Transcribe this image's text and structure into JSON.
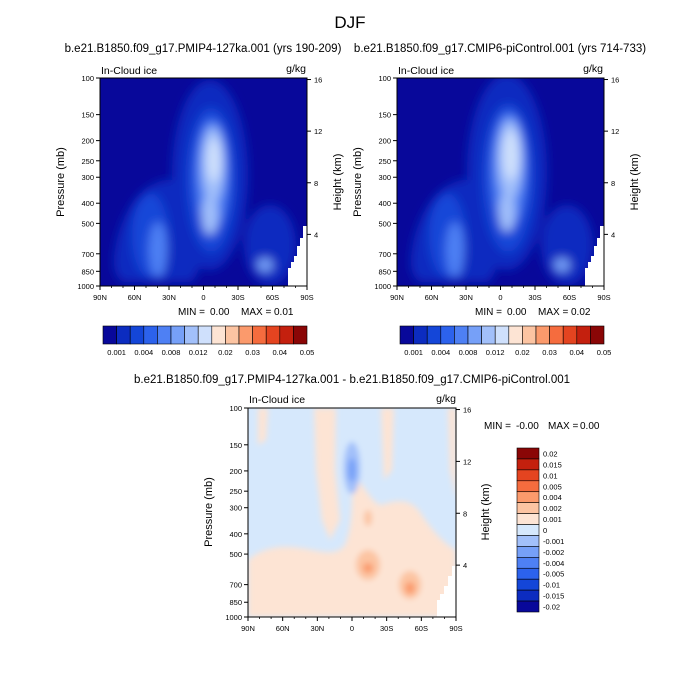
{
  "season_title": "DJF",
  "chart_data": [
    {
      "type": "heatmap",
      "title": "b.e21.B1850.f09_g17.PMIP4-127ka.001 (yrs 190-209)",
      "left_subtitle": "In-Cloud ice",
      "units": "g/kg",
      "xlabel": "",
      "ylabel": "Pressure (mb)",
      "ylabel_right": "Height (km)",
      "x_ticks": [
        "90N",
        "60N",
        "30N",
        "0",
        "30S",
        "60S",
        "90S"
      ],
      "y_ticks": [
        "100",
        "150",
        "200",
        "250",
        "300",
        "400",
        "500",
        "700",
        "850",
        "1000"
      ],
      "height_ticks": [
        "16",
        "12",
        "8",
        "4"
      ],
      "min_label": "MIN =",
      "min_value": "0.00",
      "max_label": "MAX =",
      "max_value": "0.01",
      "colorbar_labels": [
        "0.001",
        "0.004",
        "0.008",
        "0.012",
        "0.02",
        "0.03",
        "0.04",
        "0.05"
      ]
    },
    {
      "type": "heatmap",
      "title": "b.e21.B1850.f09_g17.CMIP6-piControl.001 (yrs 714-733)",
      "left_subtitle": "In-Cloud ice",
      "units": "g/kg",
      "xlabel": "",
      "ylabel": "Pressure (mb)",
      "ylabel_right": "Height (km)",
      "x_ticks": [
        "90N",
        "60N",
        "30N",
        "0",
        "30S",
        "60S",
        "90S"
      ],
      "y_ticks": [
        "100",
        "150",
        "200",
        "250",
        "300",
        "400",
        "500",
        "700",
        "850",
        "1000"
      ],
      "height_ticks": [
        "16",
        "12",
        "8",
        "4"
      ],
      "min_label": "MIN =",
      "min_value": "0.00",
      "max_label": "MAX =",
      "max_value": "0.02",
      "colorbar_labels": [
        "0.001",
        "0.004",
        "0.008",
        "0.012",
        "0.02",
        "0.03",
        "0.04",
        "0.05"
      ]
    },
    {
      "type": "heatmap",
      "title": "b.e21.B1850.f09_g17.PMIP4-127ka.001 - b.e21.B1850.f09_g17.CMIP6-piControl.001",
      "left_subtitle": "In-Cloud ice",
      "units": "g/kg",
      "xlabel": "",
      "ylabel": "Pressure (mb)",
      "ylabel_right": "Height (km)",
      "x_ticks": [
        "90N",
        "60N",
        "30N",
        "0",
        "30S",
        "60S",
        "90S"
      ],
      "y_ticks": [
        "100",
        "150",
        "200",
        "250",
        "300",
        "400",
        "500",
        "700",
        "850",
        "1000"
      ],
      "height_ticks": [
        "16",
        "12",
        "8",
        "4"
      ],
      "min_label": "MIN =",
      "min_value": "-0.00",
      "max_label": "MAX =",
      "max_value": "0.00",
      "colorbar_labels": [
        "0.02",
        "0.015",
        "0.01",
        "0.005",
        "0.004",
        "0.002",
        "0.001",
        "0",
        "-0.001",
        "-0.002",
        "-0.004",
        "-0.005",
        "-0.01",
        "-0.015",
        "-0.02"
      ]
    }
  ],
  "colors": {
    "ice_scale": [
      "#08089a",
      "#0c2cc0",
      "#1446d8",
      "#2c62ec",
      "#4e80f4",
      "#76a0f8",
      "#a2c0fa",
      "#cfe0fc",
      "#fde4d4",
      "#fcc4a2",
      "#fb9a6c",
      "#f56c3e",
      "#e44420",
      "#c4200e",
      "#8a0606"
    ],
    "diff_scale": [
      "#8a0606",
      "#c4200e",
      "#e44420",
      "#f56c3e",
      "#fb9a6c",
      "#fcc4a2",
      "#fde4d4",
      "#d6e8fc",
      "#a2c0fa",
      "#76a0f8",
      "#4e80f4",
      "#2c62ec",
      "#1446d8",
      "#0c2cc0",
      "#08089a"
    ]
  }
}
